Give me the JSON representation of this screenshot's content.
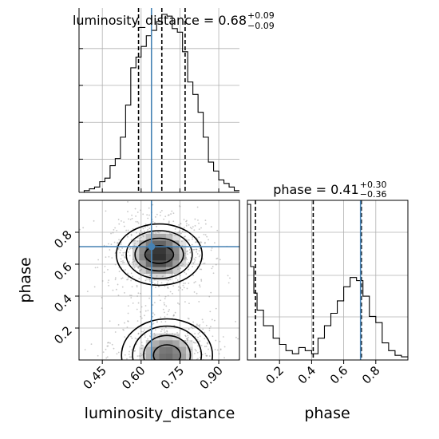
{
  "chart_data": [
    {
      "type": "histogram",
      "panel": "luminosity_distance",
      "title": {
        "param": "luminosity_distance",
        "median": "0.68",
        "err_plus": "+0.09",
        "err_minus": "−0.09"
      },
      "xlim": [
        0.36,
        0.98
      ],
      "ylim": [
        0,
        1.0
      ],
      "grid": true,
      "bin_edges": [
        0.36,
        0.38,
        0.4,
        0.42,
        0.44,
        0.46,
        0.48,
        0.5,
        0.52,
        0.54,
        0.56,
        0.58,
        0.6,
        0.62,
        0.64,
        0.66,
        0.68,
        0.7,
        0.72,
        0.74,
        0.76,
        0.78,
        0.8,
        0.82,
        0.84,
        0.86,
        0.88,
        0.9,
        0.92,
        0.94,
        0.96,
        0.98
      ],
      "counts": [
        0,
        0.01,
        0.02,
        0.03,
        0.06,
        0.08,
        0.15,
        0.19,
        0.31,
        0.49,
        0.7,
        0.76,
        0.82,
        0.88,
        0.91,
        0.96,
        1.0,
        0.99,
        0.92,
        0.9,
        0.79,
        0.62,
        0.55,
        0.45,
        0.31,
        0.17,
        0.12,
        0.07,
        0.05,
        0.03,
        0.01
      ],
      "quantile_lines": [
        0.59,
        0.68,
        0.77
      ],
      "truth": 0.64
    },
    {
      "type": "scatter",
      "panel": "luminosity_distance-phase",
      "xlabel": "luminosity_distance",
      "ylabel": "phase",
      "xlim": [
        0.36,
        0.98
      ],
      "ylim": [
        0.0,
        1.0
      ],
      "xticks": [
        "0.45",
        "0.60",
        "0.75",
        "0.90"
      ],
      "yticks": [
        "0.2",
        "0.4",
        "0.6",
        "0.8"
      ],
      "grid": true,
      "truth": {
        "x": 0.64,
        "y": 0.71
      },
      "modes": [
        {
          "cx": 0.67,
          "cy": 0.66,
          "sx": 0.085,
          "sy": 0.12,
          "weight": 0.55
        },
        {
          "cx": 0.7,
          "cy": 0.03,
          "sx": 0.095,
          "sy": 0.13,
          "weight": 0.45
        }
      ]
    },
    {
      "type": "histogram",
      "panel": "phase",
      "title": {
        "param": "phase",
        "median": "0.41",
        "err_plus": "+0.30",
        "err_minus": "−0.36"
      },
      "xlabel": "phase",
      "xlim": [
        0.0,
        1.0
      ],
      "ylim": [
        0,
        1.0
      ],
      "xticks": [
        "0.2",
        "0.4",
        "0.6",
        "0.8"
      ],
      "grid": true,
      "bin_edges": [
        0.0,
        0.02,
        0.04,
        0.06,
        0.08,
        0.1,
        0.12,
        0.14,
        0.16,
        0.18,
        0.2,
        0.22,
        0.24,
        0.26,
        0.28,
        0.3,
        0.32,
        0.34,
        0.36,
        0.38,
        0.4,
        0.42,
        0.44,
        0.46,
        0.48,
        0.5,
        0.52,
        0.54,
        0.56,
        0.58,
        0.6,
        0.62,
        0.64,
        0.66,
        0.68,
        0.7,
        0.72,
        0.74,
        0.76,
        0.78,
        0.8,
        0.82,
        0.84,
        0.86,
        0.88,
        0.9,
        0.92,
        0.94,
        0.96,
        0.98,
        1.0
      ],
      "counts": [
        1.0,
        0.6,
        0.43,
        0.32,
        0.32,
        0.22,
        0.22,
        0.22,
        0.14,
        0.14,
        0.1,
        0.1,
        0.06,
        0.06,
        0.04,
        0.04,
        0.08,
        0.08,
        0.06,
        0.06,
        0.04,
        0.04,
        0.14,
        0.14,
        0.22,
        0.22,
        0.3,
        0.3,
        0.38,
        0.38,
        0.47,
        0.47,
        0.53,
        0.53,
        0.51,
        0.51,
        0.41,
        0.41,
        0.28,
        0.28,
        0.24,
        0.24,
        0.11,
        0.11,
        0.06,
        0.06,
        0.03,
        0.03,
        0.02,
        0.02
      ],
      "quantile_lines": [
        0.05,
        0.41,
        0.71
      ],
      "truth": 0.705
    }
  ],
  "colors": {
    "truth": "#4682b4",
    "hist": "#000000",
    "grid": "#b0b0b0",
    "density": "#000000"
  }
}
